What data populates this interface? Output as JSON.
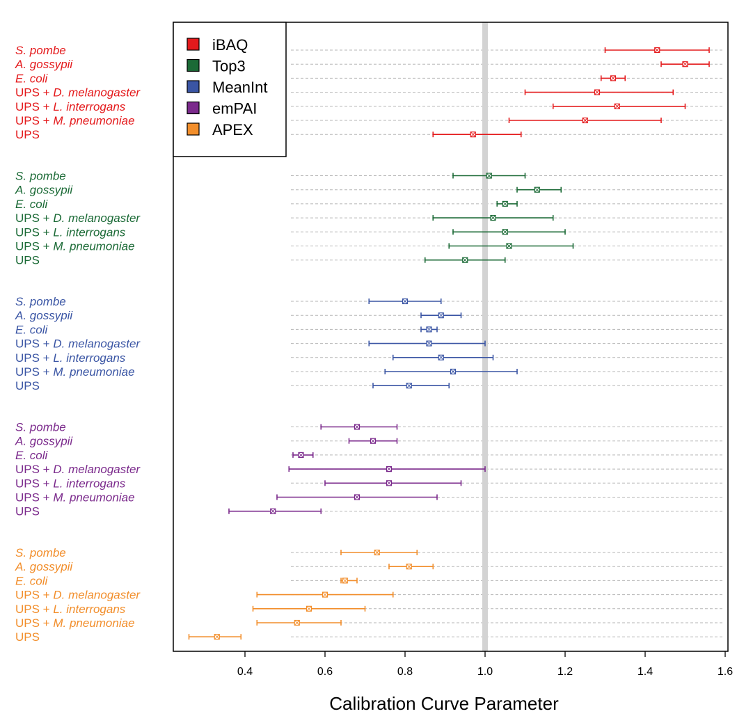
{
  "chart_data": {
    "type": "errorbar",
    "xlabel": "Calibration Curve Parameter",
    "xlim": [
      0.22,
      1.62
    ],
    "xticks": [
      "0.4",
      "0.6",
      "0.8",
      "1.0",
      "1.2",
      "1.4",
      "1.6"
    ],
    "reference_line": 1.0,
    "legend_position": "top-left",
    "categories": [
      {
        "prefix": "",
        "organism": "S. pombe"
      },
      {
        "prefix": "",
        "organism": "A. gossypii"
      },
      {
        "prefix": "",
        "organism": "E. coli"
      },
      {
        "prefix": "UPS + ",
        "organism": "D. melanogaster"
      },
      {
        "prefix": "UPS + ",
        "organism": "L. interrogans"
      },
      {
        "prefix": "UPS + ",
        "organism": "M. pneumoniae"
      },
      {
        "prefix": "UPS",
        "organism": ""
      }
    ],
    "series": [
      {
        "name": "iBAQ",
        "color": "#e41a1c",
        "points": [
          {
            "value": 1.43,
            "low": 1.3,
            "high": 1.56
          },
          {
            "value": 1.5,
            "low": 1.44,
            "high": 1.56
          },
          {
            "value": 1.32,
            "low": 1.29,
            "high": 1.35
          },
          {
            "value": 1.28,
            "low": 1.1,
            "high": 1.47
          },
          {
            "value": 1.33,
            "low": 1.17,
            "high": 1.5
          },
          {
            "value": 1.25,
            "low": 1.06,
            "high": 1.44
          },
          {
            "value": 0.97,
            "low": 0.87,
            "high": 1.09
          }
        ]
      },
      {
        "name": "Top3",
        "color": "#1b6a36",
        "points": [
          {
            "value": 1.01,
            "low": 0.92,
            "high": 1.1
          },
          {
            "value": 1.13,
            "low": 1.08,
            "high": 1.19
          },
          {
            "value": 1.05,
            "low": 1.03,
            "high": 1.08
          },
          {
            "value": 1.02,
            "low": 0.87,
            "high": 1.17
          },
          {
            "value": 1.05,
            "low": 0.92,
            "high": 1.2
          },
          {
            "value": 1.06,
            "low": 0.91,
            "high": 1.22
          },
          {
            "value": 0.95,
            "low": 0.85,
            "high": 1.05
          }
        ]
      },
      {
        "name": "MeanInt",
        "color": "#3a55a4",
        "points": [
          {
            "value": 0.8,
            "low": 0.71,
            "high": 0.89
          },
          {
            "value": 0.89,
            "low": 0.84,
            "high": 0.94
          },
          {
            "value": 0.86,
            "low": 0.84,
            "high": 0.88
          },
          {
            "value": 0.86,
            "low": 0.71,
            "high": 1.0
          },
          {
            "value": 0.89,
            "low": 0.77,
            "high": 1.02
          },
          {
            "value": 0.92,
            "low": 0.75,
            "high": 1.08
          },
          {
            "value": 0.81,
            "low": 0.72,
            "high": 0.91
          }
        ]
      },
      {
        "name": "emPAI",
        "color": "#7b2a8c",
        "points": [
          {
            "value": 0.68,
            "low": 0.59,
            "high": 0.78
          },
          {
            "value": 0.72,
            "low": 0.66,
            "high": 0.78
          },
          {
            "value": 0.54,
            "low": 0.52,
            "high": 0.57
          },
          {
            "value": 0.76,
            "low": 0.51,
            "high": 1.0
          },
          {
            "value": 0.76,
            "low": 0.6,
            "high": 0.94
          },
          {
            "value": 0.68,
            "low": 0.48,
            "high": 0.88
          },
          {
            "value": 0.47,
            "low": 0.36,
            "high": 0.59
          }
        ]
      },
      {
        "name": "APEX",
        "color": "#f28e2b",
        "points": [
          {
            "value": 0.73,
            "low": 0.64,
            "high": 0.83
          },
          {
            "value": 0.81,
            "low": 0.76,
            "high": 0.87
          },
          {
            "value": 0.65,
            "low": 0.64,
            "high": 0.68
          },
          {
            "value": 0.6,
            "low": 0.43,
            "high": 0.77
          },
          {
            "value": 0.56,
            "low": 0.42,
            "high": 0.7
          },
          {
            "value": 0.53,
            "low": 0.43,
            "high": 0.64
          },
          {
            "value": 0.33,
            "low": 0.26,
            "high": 0.39
          }
        ]
      }
    ]
  }
}
